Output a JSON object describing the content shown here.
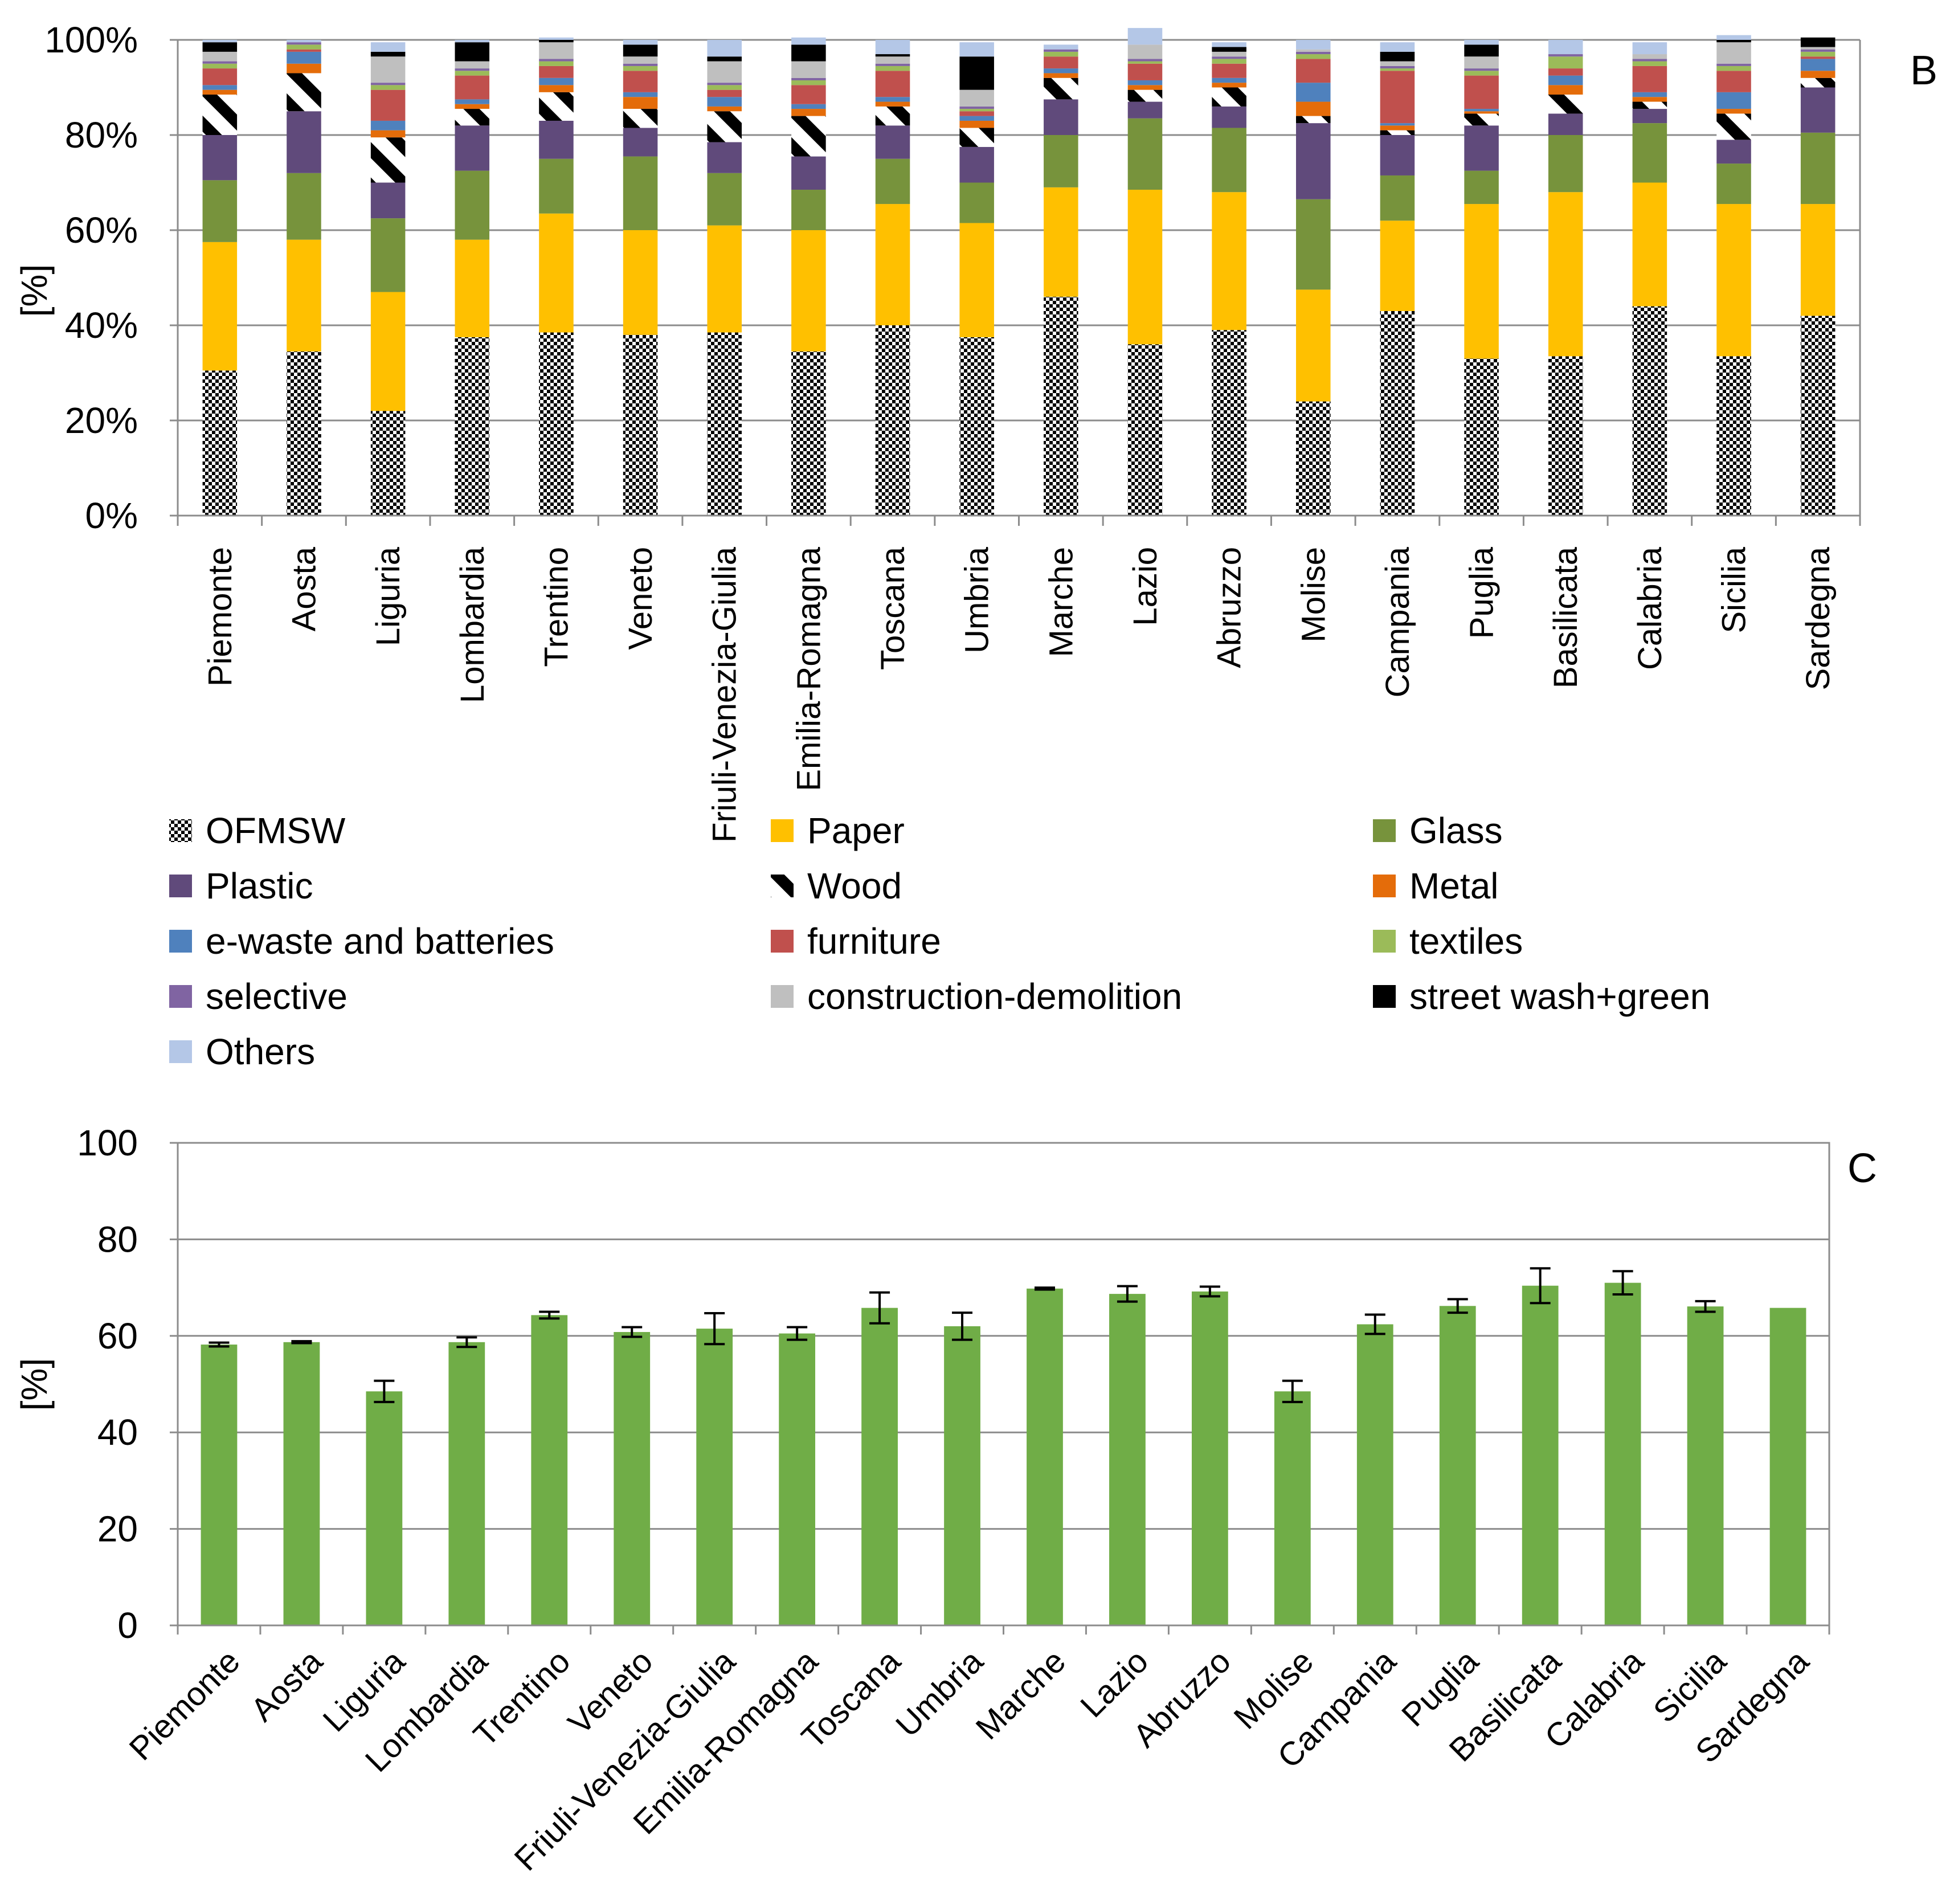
{
  "chart_data": [
    {
      "panel": "B",
      "type": "bar",
      "stacked": true,
      "title": "",
      "ylabel": "[%]",
      "ylim": [
        0,
        100
      ],
      "y_tick_labels": [
        "0%",
        "20%",
        "40%",
        "60%",
        "80%",
        "100%"
      ],
      "categories": [
        "Piemonte",
        "Aosta",
        "Liguria",
        "Lombardia",
        "Trentino",
        "Veneto",
        "Friuli-Venezia-Giulia",
        "Emilia-Romagna",
        "Toscana",
        "Umbria",
        "Marche",
        "Lazio",
        "Abruzzo",
        "Molise",
        "Campania",
        "Puglia",
        "Basilicata",
        "Calabria",
        "Sicilia",
        "Sardegna"
      ],
      "legend_position": "bottom",
      "series": [
        {
          "name": "OFMSW",
          "color": "#000000",
          "pattern": "checker",
          "values": [
            30.5,
            34.5,
            22,
            37.5,
            38.5,
            38,
            38.5,
            34.5,
            40,
            37.5,
            46,
            36,
            39,
            24,
            43,
            33,
            33.5,
            44,
            33.5,
            42
          ]
        },
        {
          "name": "Paper",
          "color": "#ffc000",
          "pattern": "solid",
          "values": [
            27,
            23.5,
            25,
            20.5,
            25,
            22,
            22.5,
            25.5,
            25.5,
            24,
            23,
            32.5,
            29,
            23.5,
            19,
            32.5,
            34.5,
            26,
            32,
            23.5
          ]
        },
        {
          "name": "Glass",
          "color": "#77933c",
          "pattern": "solid",
          "values": [
            13,
            14,
            15.5,
            14.5,
            11.5,
            15.5,
            11,
            8.5,
            9.5,
            8.5,
            11,
            15,
            13.5,
            19,
            9.5,
            7,
            12,
            12.5,
            8.5,
            15
          ]
        },
        {
          "name": "Plastic",
          "color": "#604a7b",
          "pattern": "solid",
          "values": [
            9.5,
            13,
            7.5,
            9.5,
            8,
            6,
            6.5,
            7,
            7,
            7.5,
            7.5,
            3.5,
            4.5,
            16,
            8.5,
            9.5,
            4.5,
            3,
            5,
            9.5
          ]
        },
        {
          "name": "Wood",
          "color": "#000000",
          "pattern": "diagonal",
          "values": [
            8.5,
            8,
            9.5,
            3.5,
            6,
            4,
            6.5,
            8.5,
            4,
            4,
            4.5,
            2.5,
            4,
            1.5,
            1,
            2.5,
            4,
            1.5,
            5.5,
            2
          ]
        },
        {
          "name": "Metal",
          "color": "#e46c0a",
          "pattern": "solid",
          "values": [
            1,
            2,
            1.5,
            1,
            1.5,
            2.5,
            1,
            1.5,
            1,
            1.5,
            1,
            1,
            1,
            3,
            1,
            0.5,
            2,
            1,
            1,
            1.5
          ]
        },
        {
          "name": "e-waste and batteries",
          "color": "#4f81bd",
          "pattern": "solid",
          "values": [
            1,
            2.5,
            2,
            1,
            1.5,
            1,
            2,
            1,
            1,
            1,
            1,
            1,
            1,
            4,
            0.5,
            0.5,
            2,
            1,
            3.5,
            2.5
          ]
        },
        {
          "name": " furniture",
          "color": "#c0504d",
          "pattern": "solid",
          "values": [
            3.5,
            0.5,
            6.5,
            5,
            2.5,
            4.5,
            1.5,
            4,
            5.5,
            1,
            2.5,
            3.5,
            3,
            5,
            11,
            7,
            1.5,
            5.5,
            4.5,
            0.5
          ]
        },
        {
          "name": "textiles",
          "color": "#9bbb59",
          "pattern": "solid",
          "values": [
            1,
            1,
            1,
            1,
            1,
            1,
            1,
            1,
            1,
            0.5,
            1,
            0.5,
            1,
            1,
            0.5,
            1,
            2.5,
            1,
            1,
            1
          ]
        },
        {
          "name": "selective",
          "color": "#8064a2",
          "pattern": "solid",
          "values": [
            0.5,
            0.5,
            0.5,
            0.5,
            0.5,
            0.5,
            0.5,
            0.5,
            0.5,
            0.5,
            0.5,
            0.5,
            0.5,
            0.5,
            0.5,
            0.5,
            0.5,
            0.5,
            0.5,
            0.5
          ]
        },
        {
          "name": "construction-demolition",
          "color": "#bfbfbf",
          "pattern": "solid",
          "values": [
            2,
            0,
            5.5,
            1.5,
            3.5,
            1.5,
            4.5,
            3.5,
            1.5,
            3.5,
            0,
            3,
            1,
            0.5,
            1,
            2.5,
            0,
            1,
            4.5,
            0.5
          ]
        },
        {
          "name": "street wash+green",
          "color": "#000000",
          "pattern": "solid",
          "values": [
            2,
            0,
            1,
            4,
            0.5,
            2.5,
            1,
            3.5,
            0.5,
            7,
            0,
            0,
            1,
            0,
            2,
            2.5,
            0,
            0,
            0.5,
            2
          ]
        },
        {
          "name": "Others",
          "color": "#b4c7e7",
          "pattern": "solid",
          "values": [
            0.5,
            0.5,
            2,
            0.5,
            0.5,
            1,
            3.5,
            1.5,
            3,
            3,
            1,
            3.5,
            1,
            2,
            2,
            1,
            3,
            2.5,
            1,
            0
          ]
        }
      ]
    },
    {
      "panel": "C",
      "type": "bar",
      "title": "",
      "ylabel": "[%]",
      "ylim": [
        0,
        100
      ],
      "y_tick_labels": [
        "0",
        "20",
        "40",
        "60",
        "80",
        "100"
      ],
      "categories": [
        "Piemonte",
        "Aosta",
        "Liguria",
        "Lombardia",
        "Trentino",
        "Veneto",
        "Friuli-Venezia-Giulia",
        "Emilia-Romagna",
        "Toscana",
        "Umbria",
        "Marche",
        "Lazio",
        "Abruzzo",
        "Molise",
        "Campania",
        "Puglia",
        "Basilicata",
        "Calabria",
        "Sicilia",
        "Sardegna"
      ],
      "values": [
        58.2,
        58.7,
        48.5,
        58.7,
        64.3,
        60.8,
        61.5,
        60.5,
        65.8,
        62,
        69.8,
        68.7,
        69.2,
        48.5,
        62.4,
        66.2,
        70.4,
        71,
        66.1,
        65.8
      ],
      "errors": [
        0.4,
        0.2,
        2.2,
        1.0,
        0.7,
        1.0,
        3.2,
        1.3,
        3.2,
        2.8,
        0.2,
        1.6,
        1.0,
        2.2,
        2.0,
        1.4,
        3.6,
        2.4,
        1.1,
        0
      ],
      "bar_color": "#70ad47",
      "error_color": "#000000"
    }
  ]
}
